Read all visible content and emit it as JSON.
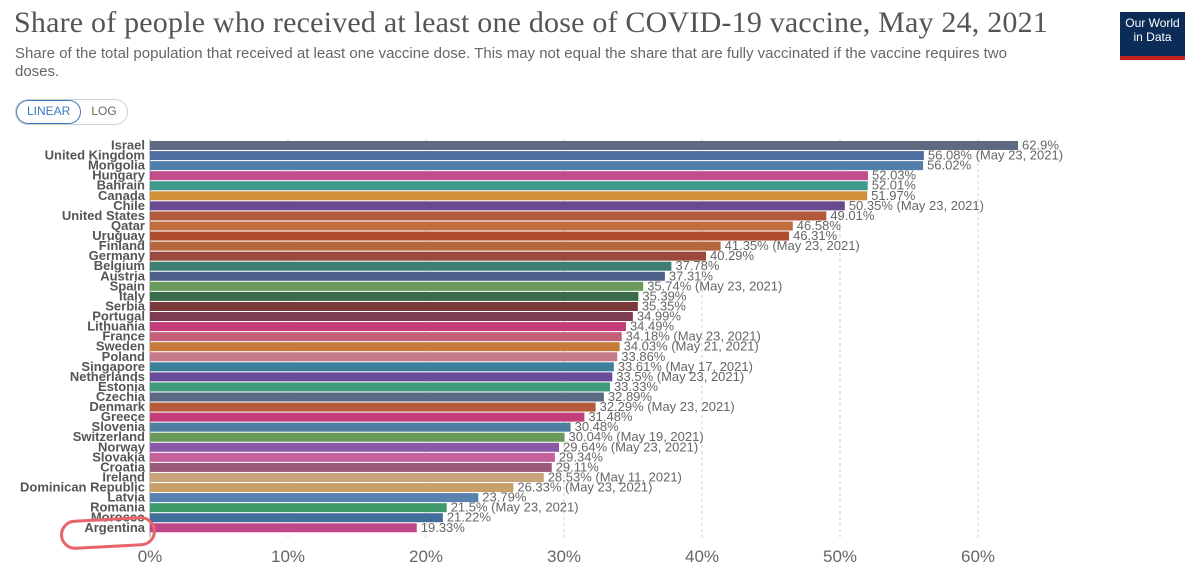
{
  "title": "Share of people who received at least one dose of COVID-19 vaccine, May 24, 2021",
  "subtitle": "Share of the total population that received at least one vaccine dose. This may not equal the share that are fully vaccinated if the vaccine requires two doses.",
  "logo": {
    "line1": "Our World",
    "line2": "in Data"
  },
  "scale_toggle": {
    "linear": "LINEAR",
    "log": "LOG",
    "selected": "LINEAR"
  },
  "annotation": {
    "circled": "Argentina",
    "color": "#e9646a"
  },
  "chart_data": {
    "type": "bar",
    "orientation": "horizontal",
    "xlim": [
      0,
      65
    ],
    "ticks": [
      0,
      10,
      20,
      30,
      40,
      50,
      60
    ],
    "tick_labels": [
      "0%",
      "10%",
      "20%",
      "30%",
      "40%",
      "50%",
      "60%"
    ],
    "grid": true,
    "bars": [
      {
        "country": "Israel",
        "value": 62.9,
        "label": "62.9%",
        "color": "#5d6a82"
      },
      {
        "country": "United Kingdom",
        "value": 56.08,
        "label": "56.08% (May 23, 2021)",
        "color": "#4c6fa0"
      },
      {
        "country": "Mongolia",
        "value": 56.02,
        "label": "56.02%",
        "color": "#4f7faa"
      },
      {
        "country": "Hungary",
        "value": 52.03,
        "label": "52.03%",
        "color": "#c24d8a"
      },
      {
        "country": "Bahrain",
        "value": 52.01,
        "label": "52.01%",
        "color": "#3f9a8d"
      },
      {
        "country": "Canada",
        "value": 51.97,
        "label": "51.97%",
        "color": "#d1913a"
      },
      {
        "country": "Chile",
        "value": 50.35,
        "label": "50.35% (May 23, 2021)",
        "color": "#6a4a8e"
      },
      {
        "country": "United States",
        "value": 49.01,
        "label": "49.01%",
        "color": "#b35a3d"
      },
      {
        "country": "Qatar",
        "value": 46.58,
        "label": "46.58%",
        "color": "#c06e3e"
      },
      {
        "country": "Uruguay",
        "value": 46.31,
        "label": "46.31%",
        "color": "#b04c2e"
      },
      {
        "country": "Finland",
        "value": 41.35,
        "label": "41.35% (May 23, 2021)",
        "color": "#b5663d"
      },
      {
        "country": "Germany",
        "value": 40.29,
        "label": "40.29%",
        "color": "#9a4a3d"
      },
      {
        "country": "Belgium",
        "value": 37.78,
        "label": "37.78%",
        "color": "#3f7e72"
      },
      {
        "country": "Austria",
        "value": 37.31,
        "label": "37.31%",
        "color": "#4e5f8a"
      },
      {
        "country": "Spain",
        "value": 35.74,
        "label": "35.74% (May 23, 2021)",
        "color": "#6a9a5a"
      },
      {
        "country": "Italy",
        "value": 35.39,
        "label": "35.39%",
        "color": "#3a6b4a"
      },
      {
        "country": "Serbia",
        "value": 35.35,
        "label": "35.35%",
        "color": "#7a3a3a"
      },
      {
        "country": "Portugal",
        "value": 34.99,
        "label": "34.99%",
        "color": "#7d3d55"
      },
      {
        "country": "Lithuania",
        "value": 34.49,
        "label": "34.49%",
        "color": "#c23d7a"
      },
      {
        "country": "France",
        "value": 34.18,
        "label": "34.18% (May 23, 2021)",
        "color": "#c45f7a"
      },
      {
        "country": "Sweden",
        "value": 34.03,
        "label": "34.03% (May 21, 2021)",
        "color": "#c77a3a"
      },
      {
        "country": "Poland",
        "value": 33.86,
        "label": "33.86%",
        "color": "#c47a88"
      },
      {
        "country": "Singapore",
        "value": 33.61,
        "label": "33.61% (May 17, 2021)",
        "color": "#3e7f9a"
      },
      {
        "country": "Netherlands",
        "value": 33.5,
        "label": "33.5% (May 23, 2021)",
        "color": "#6a4a9a"
      },
      {
        "country": "Estonia",
        "value": 33.33,
        "label": "33.33%",
        "color": "#3f9a7a"
      },
      {
        "country": "Czechia",
        "value": 32.89,
        "label": "32.89%",
        "color": "#5a6a82"
      },
      {
        "country": "Denmark",
        "value": 32.29,
        "label": "32.29% (May 23, 2021)",
        "color": "#b55a3a"
      },
      {
        "country": "Greece",
        "value": 31.48,
        "label": "31.48%",
        "color": "#c23d7a"
      },
      {
        "country": "Slovenia",
        "value": 30.48,
        "label": "30.48%",
        "color": "#4e7fa0"
      },
      {
        "country": "Switzerland",
        "value": 30.04,
        "label": "30.04% (May 19, 2021)",
        "color": "#6a9a5a"
      },
      {
        "country": "Norway",
        "value": 29.64,
        "label": "29.64% (May 23, 2021)",
        "color": "#8a5aa8"
      },
      {
        "country": "Slovakia",
        "value": 29.34,
        "label": "29.34%",
        "color": "#c4609a"
      },
      {
        "country": "Croatia",
        "value": 29.11,
        "label": "29.11%",
        "color": "#9a5a7a"
      },
      {
        "country": "Ireland",
        "value": 28.53,
        "label": "28.53% (May 11, 2021)",
        "color": "#c8a27a"
      },
      {
        "country": "Dominican Republic",
        "value": 26.33,
        "label": "26.33% (May 23, 2021)",
        "color": "#c9a06a"
      },
      {
        "country": "Latvia",
        "value": 23.79,
        "label": "23.79%",
        "color": "#5a82b0"
      },
      {
        "country": "Romania",
        "value": 21.5,
        "label": "21.5% (May 23, 2021)",
        "color": "#3f9a6a"
      },
      {
        "country": "Morocco",
        "value": 21.22,
        "label": "21.22%",
        "color": "#3f6f9a"
      },
      {
        "country": "Argentina",
        "value": 19.33,
        "label": "19.33%",
        "color": "#c0468a"
      }
    ]
  }
}
